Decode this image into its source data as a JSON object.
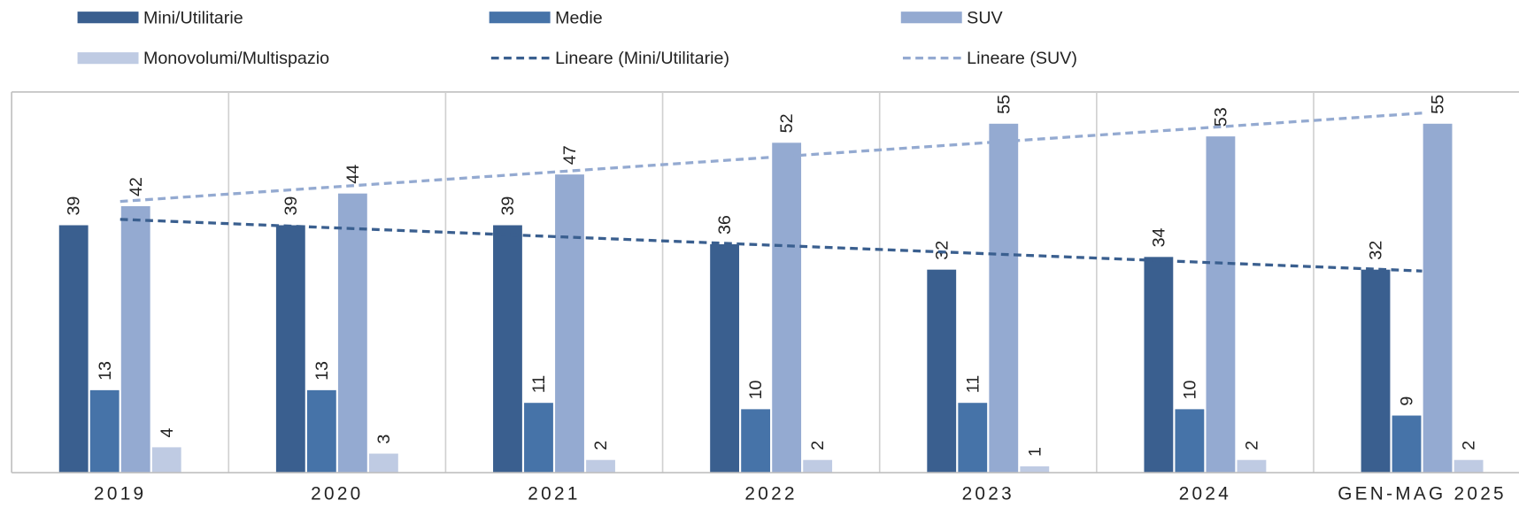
{
  "chart_data": {
    "type": "bar",
    "categories": [
      "2019",
      "2020",
      "2021",
      "2022",
      "2023",
      "2024",
      "GEN-MAG 2025"
    ],
    "series": [
      {
        "name": "Mini/Utilitarie",
        "color": "#3a5f8f",
        "values": [
          39,
          39,
          39,
          36,
          32,
          34,
          32
        ],
        "trendline": {
          "name": "Lineare (Mini/Utilitarie)",
          "color": "#3a5f8f"
        }
      },
      {
        "name": "Medie",
        "color": "#4673a8",
        "values": [
          13,
          13,
          11,
          10,
          11,
          10,
          9
        ]
      },
      {
        "name": "SUV",
        "color": "#94aad1",
        "values": [
          42,
          44,
          47,
          52,
          55,
          53,
          55
        ],
        "trendline": {
          "name": "Lineare (SUV)",
          "color": "#94aad1"
        }
      },
      {
        "name": "Monovolumi/Multispazio",
        "color": "#bfcbe3",
        "values": [
          4,
          3,
          2,
          2,
          1,
          2,
          2
        ]
      }
    ],
    "ylim": [
      0,
      60
    ],
    "grid": "vertical",
    "legend": "top"
  }
}
